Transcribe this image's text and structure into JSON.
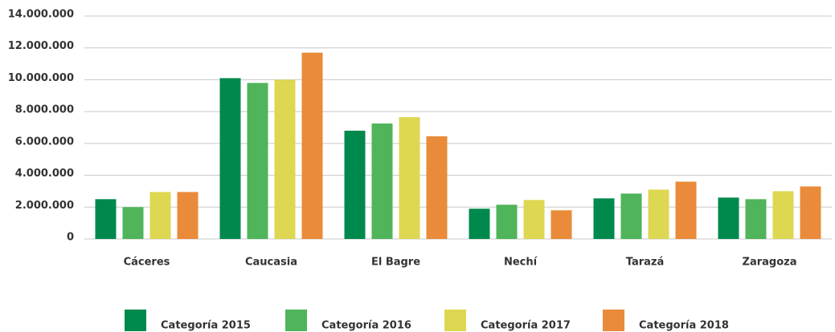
{
  "chart_data": {
    "type": "bar",
    "categories": [
      "Cáceres",
      "Caucasia",
      "El Bagre",
      "Nechí",
      "Tarazá",
      "Zaragoza"
    ],
    "series": [
      {
        "name": "Categoría 2015",
        "color": "#00894d",
        "values": [
          2500000,
          10100000,
          6800000,
          1900000,
          2550000,
          2600000
        ]
      },
      {
        "name": "Categoría 2016",
        "color": "#4fb45a",
        "values": [
          2000000,
          9800000,
          7250000,
          2150000,
          2850000,
          2500000
        ]
      },
      {
        "name": "Categoría 2017",
        "color": "#ded752",
        "values": [
          2950000,
          10000000,
          7650000,
          2450000,
          3100000,
          3000000
        ]
      },
      {
        "name": "Categoría 2018",
        "color": "#e98b3a",
        "values": [
          2950000,
          11700000,
          6450000,
          1800000,
          3600000,
          3300000
        ]
      }
    ],
    "ylim": [
      0,
      14000000
    ],
    "yticks": [
      0,
      {
        "value": 2000000,
        "label": "2.000.000"
      },
      {
        "value": 4000000,
        "label": "4.000.000"
      },
      {
        "value": 6000000,
        "label": "6.000.000"
      },
      {
        "value": 8000000,
        "label": "8.000.000"
      },
      {
        "value": 10000000,
        "label": "10.000.000"
      },
      {
        "value": 12000000,
        "label": "12.000.000"
      },
      {
        "value": 14000000,
        "label": "14.000.000"
      }
    ],
    "grid": true,
    "legend": "bottom"
  }
}
